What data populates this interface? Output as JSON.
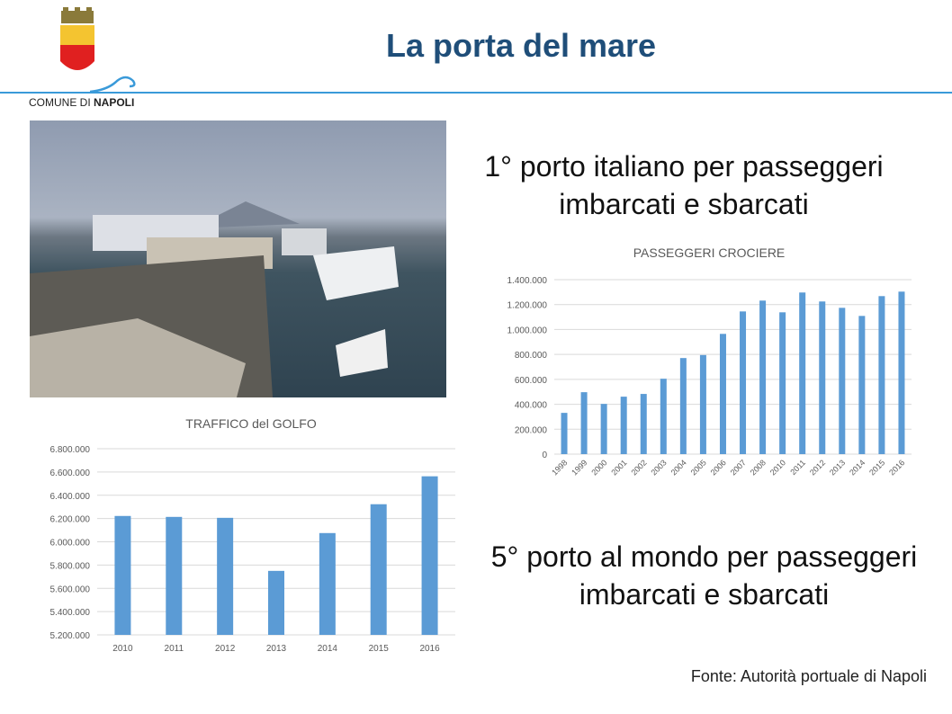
{
  "header": {
    "title": "La porta del mare",
    "logo_text": "COMUNE DI NAPOLI",
    "logo_text_plain": "COMUNE DI ",
    "logo_text_bold": "NAPOLI"
  },
  "headline_1": [
    "1° porto italiano per passeggeri",
    "imbarcati e sbarcati"
  ],
  "headline_2": [
    "5° porto al mondo per passeggeri",
    "imbarcati e sbarcati"
  ],
  "source": "Fonte: Autorità portuale di Napoli",
  "colors": {
    "bar": "#5b9bd5",
    "title": "#1f4e79",
    "rule": "#3a9ad9"
  },
  "chart_data": [
    {
      "type": "bar",
      "title": "PASSEGGERI CROCIERE",
      "ylim": [
        0,
        1400000
      ],
      "yticks": [
        "0",
        "200.000",
        "400.000",
        "600.000",
        "800.000",
        "1.000.000",
        "1.200.000",
        "1.400.000"
      ],
      "categories": [
        "1998",
        "1999",
        "2000",
        "2001",
        "2002",
        "2003",
        "2004",
        "2005",
        "2006",
        "2007",
        "2008",
        "2010",
        "2011",
        "2012",
        "2013",
        "2014",
        "2015",
        "2016"
      ],
      "values": [
        331000,
        497000,
        403000,
        461000,
        483000,
        605000,
        771000,
        795000,
        965000,
        1145000,
        1232000,
        1138000,
        1297000,
        1225000,
        1174000,
        1109000,
        1268000,
        1304000
      ]
    },
    {
      "type": "bar",
      "title": "TRAFFICO del GOLFO",
      "ylim": [
        5200000,
        6800000
      ],
      "yticks": [
        "5.200.000",
        "5.400.000",
        "5.600.000",
        "5.800.000",
        "6.000.000",
        "6.200.000",
        "6.400.000",
        "6.600.000",
        "6.800.000"
      ],
      "categories": [
        "2010",
        "2011",
        "2012",
        "2013",
        "2014",
        "2015",
        "2016"
      ],
      "values": [
        6222000,
        6214000,
        6206000,
        5750000,
        6075000,
        6323000,
        6563000
      ]
    }
  ]
}
